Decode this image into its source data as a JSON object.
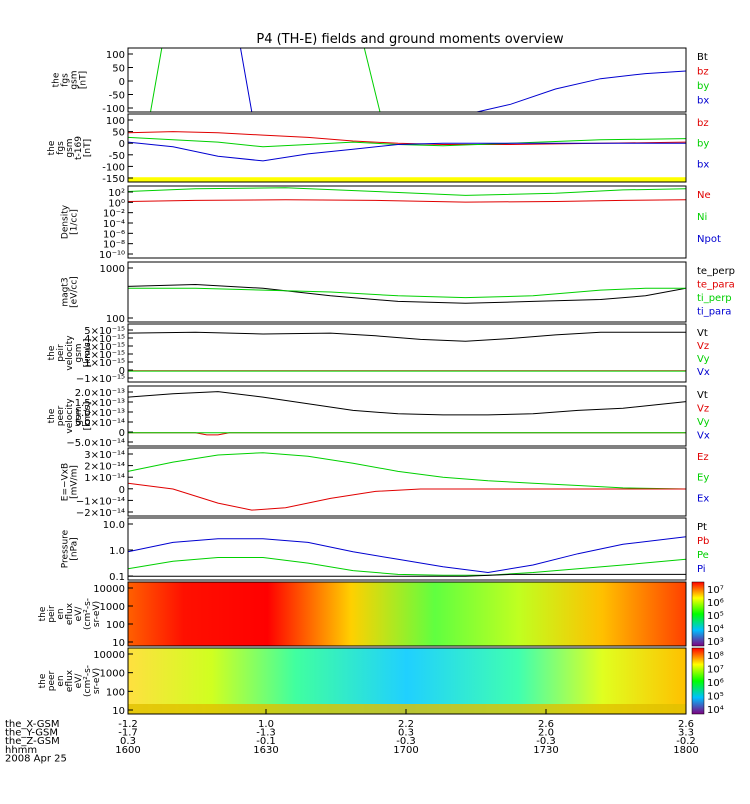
{
  "title": "P4 (TH-E) fields and ground moments overview",
  "colors": {
    "red": "#e00000",
    "green": "#00d000",
    "blue": "#0000d0",
    "black": "#000000",
    "yellow": "#ffff00"
  },
  "chart_data": [
    {
      "id": "fgs",
      "type": "line",
      "ylabel": [
        "the",
        "fgs",
        "gsm",
        "[nT]"
      ],
      "yticks": [
        "100",
        "50",
        "0",
        "-50",
        "-100"
      ],
      "legend": [
        {
          "name": "Bt",
          "color": "black"
        },
        {
          "name": "bz",
          "color": "red"
        },
        {
          "name": "by",
          "color": "green"
        },
        {
          "name": "bx",
          "color": "blue"
        }
      ],
      "series": [
        {
          "color": "green",
          "x": [
            1.0,
            1.05
          ],
          "y": [
            -130,
            120
          ]
        },
        {
          "color": "blue",
          "x": [
            1.4,
            1.45
          ],
          "y": [
            120,
            -130
          ]
        },
        {
          "color": "green",
          "x": [
            1.95,
            2.02
          ],
          "y": [
            120,
            -130
          ]
        },
        {
          "color": "blue",
          "x": [
            2.45,
            2.6,
            2.8,
            3.0,
            3.2,
            3.38
          ],
          "y": [
            -130,
            -100,
            -40,
            0,
            20,
            30
          ]
        }
      ]
    },
    {
      "id": "fgs_3",
      "type": "line",
      "ylabel": [
        "the",
        "fgs",
        "gsm",
        "t-169",
        "[nT]"
      ],
      "yticks": [
        "100",
        "50",
        "0",
        "-50",
        "-100",
        "-150"
      ],
      "legend": [
        {
          "name": "bz",
          "color": "red"
        },
        {
          "name": "by",
          "color": "green"
        },
        {
          "name": "bx",
          "color": "blue"
        }
      ],
      "series": [
        {
          "color": "red",
          "x": [
            0.9,
            1.1,
            1.3,
            1.5,
            1.7,
            1.9,
            2.1,
            2.3,
            2.6,
            3.0,
            3.38
          ],
          "y": [
            40,
            45,
            40,
            30,
            20,
            5,
            -5,
            -10,
            -10,
            -5,
            0
          ]
        },
        {
          "color": "green",
          "x": [
            0.9,
            1.1,
            1.3,
            1.5,
            1.7,
            1.9,
            2.1,
            2.3,
            2.6,
            3.0,
            3.38
          ],
          "y": [
            20,
            10,
            0,
            -20,
            -10,
            0,
            -10,
            -15,
            -5,
            10,
            15
          ]
        },
        {
          "color": "blue",
          "x": [
            0.9,
            1.1,
            1.3,
            1.5,
            1.7,
            1.9,
            2.1,
            2.3,
            2.6,
            3.0,
            3.38
          ],
          "y": [
            0,
            -20,
            -60,
            -80,
            -50,
            -30,
            -10,
            -5,
            -5,
            -5,
            -5
          ]
        }
      ]
    },
    {
      "id": "density",
      "type": "line",
      "ylabel": [
        "Density",
        "[1/cc]"
      ],
      "yticks": [
        "10²",
        "10⁰",
        "10⁻²",
        "10⁻⁴",
        "10⁻⁶",
        "10⁻⁸",
        "10⁻¹⁰"
      ],
      "legend": [
        {
          "name": "Ne",
          "color": "red"
        },
        {
          "name": "Ni",
          "color": "green"
        },
        {
          "name": "Npot",
          "color": "blue"
        }
      ],
      "series": [
        {
          "color": "green",
          "x": [
            0.9,
            1.2,
            1.6,
            2.0,
            2.4,
            2.8,
            3.1,
            3.38
          ],
          "y": [
            1.5,
            2.0,
            2.2,
            1.5,
            0.8,
            1.2,
            1.8,
            2.0
          ]
        },
        {
          "color": "red",
          "x": [
            0.9,
            1.2,
            1.6,
            2.0,
            2.4,
            2.8,
            3.1,
            3.38
          ],
          "y": [
            -0.3,
            -0.1,
            0.0,
            -0.1,
            -0.4,
            -0.3,
            -0.1,
            0.0
          ]
        }
      ]
    },
    {
      "id": "magt3",
      "type": "line",
      "ylabel": [
        "magt3",
        "[eV/cc]"
      ],
      "yticks": [
        "1000",
        "100"
      ],
      "legend": [
        {
          "name": "te_perp",
          "color": "black"
        },
        {
          "name": "te_para",
          "color": "red"
        },
        {
          "name": "ti_perp",
          "color": "green"
        },
        {
          "name": "ti_para",
          "color": "blue"
        }
      ],
      "series": [
        {
          "color": "black",
          "x": [
            0.9,
            1.2,
            1.5,
            1.8,
            2.1,
            2.4,
            2.7,
            3.0,
            3.2,
            3.38
          ],
          "y": [
            2.45,
            2.5,
            2.4,
            2.2,
            2.05,
            2.0,
            2.05,
            2.1,
            2.2,
            2.4
          ]
        },
        {
          "color": "green",
          "x": [
            0.9,
            1.2,
            1.5,
            1.8,
            2.1,
            2.4,
            2.7,
            3.0,
            3.2,
            3.38
          ],
          "y": [
            2.4,
            2.4,
            2.35,
            2.3,
            2.2,
            2.15,
            2.2,
            2.35,
            2.4,
            2.4
          ]
        }
      ]
    },
    {
      "id": "peir_v",
      "type": "line",
      "ylabel": [
        "the",
        "peir",
        "velocity",
        "gsm",
        "[km/s]"
      ],
      "yticks": [
        "5×10⁻¹⁵",
        "4×10⁻¹⁵",
        "3×10⁻¹⁵",
        "2×10⁻¹⁵",
        "1×10⁻¹⁵",
        "0",
        "−1×10⁻¹⁵"
      ],
      "legend": [
        {
          "name": "Vt",
          "color": "black"
        },
        {
          "name": "Vz",
          "color": "red"
        },
        {
          "name": "Vy",
          "color": "green"
        },
        {
          "name": "Vx",
          "color": "blue"
        }
      ],
      "series": [
        {
          "color": "black",
          "x": [
            0.9,
            1.2,
            1.5,
            1.8,
            2.0,
            2.2,
            2.4,
            2.6,
            2.8,
            3.0,
            3.38
          ],
          "y": [
            4.2,
            4.3,
            4.1,
            4.2,
            3.9,
            3.5,
            3.3,
            3.6,
            4.0,
            4.3,
            4.3
          ]
        },
        {
          "color": "red",
          "x": [
            0.9,
            3.38
          ],
          "y": [
            0.05,
            0.05
          ]
        },
        {
          "color": "green",
          "x": [
            0.9,
            3.38
          ],
          "y": [
            0,
            0
          ]
        }
      ]
    },
    {
      "id": "peer_v",
      "type": "line",
      "ylabel": [
        "the",
        "peer",
        "velocity",
        "gsm",
        "[km/s]"
      ],
      "yticks": [
        "2.0×10⁻¹³",
        "1.5×10⁻¹³",
        "1.0×10⁻¹³",
        "5.0×10⁻¹⁴",
        "0",
        "−5.0×10⁻¹⁴"
      ],
      "legend": [
        {
          "name": "Vt",
          "color": "black"
        },
        {
          "name": "Vz",
          "color": "red"
        },
        {
          "name": "Vy",
          "color": "green"
        },
        {
          "name": "Vx",
          "color": "blue"
        }
      ],
      "series": [
        {
          "color": "black",
          "x": [
            0.9,
            1.1,
            1.3,
            1.5,
            1.7,
            1.9,
            2.1,
            2.3,
            2.5,
            2.7,
            2.9,
            3.1,
            3.38
          ],
          "y": [
            1.6,
            1.75,
            1.85,
            1.6,
            1.3,
            1.0,
            0.85,
            0.8,
            0.8,
            0.85,
            1.0,
            1.1,
            1.4
          ]
        },
        {
          "color": "red",
          "x": [
            0.9,
            1.2,
            1.25,
            1.3,
            1.35,
            3.38
          ],
          "y": [
            0,
            0,
            -0.1,
            -0.1,
            0,
            0
          ]
        },
        {
          "color": "green",
          "x": [
            0.9,
            3.38
          ],
          "y": [
            0,
            0
          ]
        }
      ]
    },
    {
      "id": "efield",
      "type": "line",
      "ylabel": [
        "E=−VxB",
        "[mV/m]"
      ],
      "yticks": [
        "3×10⁻¹⁴",
        "2×10⁻¹⁴",
        "1×10⁻¹⁴",
        "0",
        "−1×10⁻¹⁴",
        "−2×10⁻¹⁴"
      ],
      "legend": [
        {
          "name": "Ez",
          "color": "red"
        },
        {
          "name": "Ey",
          "color": "green"
        },
        {
          "name": "Ex",
          "color": "blue"
        }
      ],
      "series": [
        {
          "color": "green",
          "x": [
            0.9,
            1.1,
            1.3,
            1.5,
            1.7,
            1.9,
            2.1,
            2.3,
            2.5,
            2.7,
            2.9,
            3.1,
            3.38
          ],
          "y": [
            1.5,
            2.3,
            2.9,
            3.1,
            2.8,
            2.2,
            1.5,
            1.0,
            0.7,
            0.5,
            0.3,
            0.1,
            0
          ]
        },
        {
          "color": "red",
          "x": [
            0.9,
            1.1,
            1.3,
            1.45,
            1.6,
            1.8,
            2.0,
            2.2,
            2.4,
            3.38
          ],
          "y": [
            0.5,
            0.0,
            -1.2,
            -1.8,
            -1.6,
            -0.8,
            -0.2,
            0,
            0,
            0
          ]
        }
      ]
    },
    {
      "id": "pressure",
      "type": "line",
      "ylabel": [
        "Pressure",
        "[nPa]"
      ],
      "yticks": [
        "10.0",
        "1.0",
        "0.1"
      ],
      "legend": [
        {
          "name": "Pt",
          "color": "black"
        },
        {
          "name": "Pb",
          "color": "red"
        },
        {
          "name": "Pe",
          "color": "green"
        },
        {
          "name": "Pi",
          "color": "blue"
        }
      ],
      "series": [
        {
          "color": "blue",
          "x": [
            0.9,
            1.1,
            1.3,
            1.5,
            1.7,
            1.9,
            2.1,
            2.3,
            2.5,
            2.7,
            2.9,
            3.1,
            3.38
          ],
          "y": [
            -0.2,
            0.3,
            0.5,
            0.5,
            0.3,
            -0.2,
            -0.6,
            -1.0,
            -1.3,
            -0.9,
            -0.3,
            0.2,
            0.6
          ]
        },
        {
          "color": "green",
          "x": [
            0.9,
            1.1,
            1.3,
            1.5,
            1.7,
            1.9,
            2.1,
            2.3,
            2.5,
            2.7,
            2.9,
            3.1,
            3.38
          ],
          "y": [
            -1.1,
            -0.7,
            -0.5,
            -0.5,
            -0.8,
            -1.2,
            -1.4,
            -1.45,
            -1.45,
            -1.3,
            -1.1,
            -0.9,
            -0.6
          ]
        },
        {
          "color": "black",
          "x": [
            0.9,
            1.5,
            2.0,
            2.4,
            2.6,
            3.38
          ],
          "y": [
            -1.5,
            -1.5,
            -1.5,
            -1.5,
            -1.4,
            -1.4
          ]
        }
      ]
    },
    {
      "id": "peir_en",
      "type": "heatmap",
      "ylabel": [
        "the",
        "peir",
        "en",
        "eflux",
        "eV/",
        "(cm²-s-",
        "sr-eV)"
      ],
      "yticks": [
        "10000",
        "1000",
        "100",
        "10"
      ],
      "colorbar": [
        "10⁷",
        "10⁶",
        "10⁵",
        "10⁴",
        "10³"
      ]
    },
    {
      "id": "peer_en",
      "type": "heatmap",
      "ylabel": [
        "the",
        "peer",
        "en",
        "eflux",
        "eV/",
        "(cm²-s-",
        "sr-eV)"
      ],
      "yticks": [
        "10000",
        "1000",
        "100",
        "10"
      ],
      "colorbar": [
        "10⁸",
        "10⁷",
        "10⁶",
        "10⁵",
        "10⁴"
      ]
    }
  ],
  "xaxis": {
    "rows": [
      {
        "label": "the_X-GSM",
        "values": [
          "-1.2",
          "1.0",
          "2.2",
          "2.6",
          "2.6"
        ]
      },
      {
        "label": "the_Y-GSM",
        "values": [
          "-1.7",
          "-1.3",
          "0.3",
          "2.0",
          "3.3"
        ]
      },
      {
        "label": "the_Z-GSM",
        "values": [
          "0.3",
          "-0.1",
          "-0.3",
          "-0.3",
          "-0.2"
        ]
      },
      {
        "label": "hhmm",
        "values": [
          "1600",
          "1630",
          "1700",
          "1730",
          "1800"
        ]
      }
    ],
    "date": "2008 Apr 25"
  }
}
